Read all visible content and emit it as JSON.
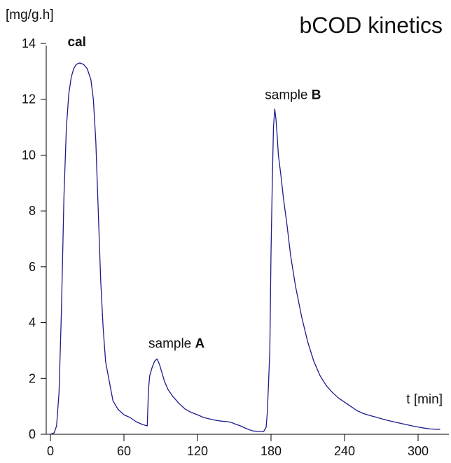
{
  "chart_data": {
    "type": "line",
    "title": "bCOD kinetics",
    "ylabel": "[mg/g.h]",
    "xlabel": "t [min]",
    "xlim": [
      0,
      320
    ],
    "ylim": [
      0,
      14
    ],
    "xticks": [
      0,
      60,
      120,
      180,
      240,
      300
    ],
    "yticks": [
      0,
      2,
      4,
      6,
      8,
      10,
      12,
      14
    ],
    "grid": false,
    "line_color": "#1c1c8c",
    "annotations": [
      {
        "id": "cal",
        "text": "cal",
        "x": 14,
        "y": 13.9
      },
      {
        "id": "sample_a",
        "prefix": "sample ",
        "emph": "A",
        "x": 80,
        "y": 3.1
      },
      {
        "id": "sample_b",
        "prefix": "sample ",
        "emph": "B",
        "x": 175,
        "y": 12.0
      }
    ],
    "series": [
      {
        "x": [
          0,
          3,
          5,
          7,
          9,
          11,
          13,
          15,
          17,
          19,
          21,
          24,
          27,
          30,
          33,
          35,
          37,
          39,
          41,
          43,
          45,
          48,
          51,
          55,
          60,
          65,
          70,
          75,
          79,
          80,
          81,
          83,
          85,
          87,
          89,
          91,
          93,
          96,
          100,
          105,
          110,
          115,
          120,
          125,
          130,
          135,
          140,
          145,
          148,
          150,
          155,
          160,
          165,
          170,
          174,
          176,
          177,
          179,
          180,
          181,
          182,
          183,
          184,
          185,
          186,
          188,
          190,
          193,
          196,
          200,
          205,
          210,
          215,
          220,
          225,
          230,
          235,
          240,
          245,
          250,
          255,
          260,
          265,
          270,
          275,
          280,
          285,
          290,
          295,
          300,
          305,
          310,
          315,
          318
        ],
        "y": [
          0.0,
          0.05,
          0.3,
          1.5,
          4.5,
          8.5,
          11.0,
          12.2,
          12.8,
          13.1,
          13.25,
          13.3,
          13.25,
          13.1,
          12.7,
          12.0,
          10.5,
          8.0,
          5.5,
          3.8,
          2.6,
          1.9,
          1.2,
          0.9,
          0.7,
          0.6,
          0.45,
          0.35,
          0.3,
          1.6,
          2.1,
          2.4,
          2.62,
          2.7,
          2.5,
          2.2,
          1.9,
          1.6,
          1.35,
          1.1,
          0.9,
          0.78,
          0.7,
          0.6,
          0.55,
          0.5,
          0.47,
          0.45,
          0.42,
          0.38,
          0.3,
          0.2,
          0.12,
          0.1,
          0.1,
          0.25,
          0.8,
          3.0,
          6.5,
          9.0,
          11.0,
          11.65,
          11.3,
          10.7,
          10.0,
          9.3,
          8.5,
          7.5,
          6.4,
          5.3,
          4.2,
          3.3,
          2.6,
          2.1,
          1.75,
          1.5,
          1.3,
          1.15,
          1.0,
          0.85,
          0.75,
          0.68,
          0.62,
          0.56,
          0.5,
          0.45,
          0.4,
          0.35,
          0.3,
          0.26,
          0.22,
          0.19,
          0.18,
          0.18
        ]
      }
    ]
  }
}
